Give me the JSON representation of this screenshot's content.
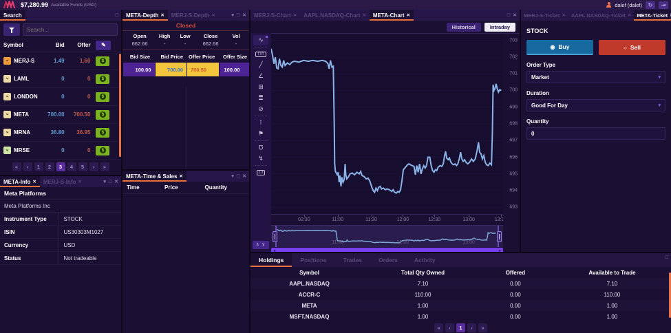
{
  "topbar": {
    "balance": "$7,280.99",
    "balance_label": "Available Funds (USD)",
    "user": "dalef (dalef)"
  },
  "icons": {
    "collapse": "▾",
    "maximize": "□",
    "close": "✕",
    "tab_close": "✕",
    "refresh": "↻",
    "logout": "⇥",
    "edit_pencil": "✎",
    "trade_dollar": "$",
    "dropdown_chevron": "▾",
    "radio_on": "◉",
    "radio_off": "○",
    "badge_chevron": "⌄",
    "chevrons_updown": "∧ ∨",
    "scroll_left_cap": "◂",
    "scroll_right_cap": "▸",
    "scroll_grip": "∙∙∙"
  },
  "watchlist": {
    "tab": "Search",
    "search_placeholder": "Search...",
    "columns": [
      "Symbol",
      "Bid",
      "Offer"
    ],
    "rows": [
      {
        "symbol": "MERJ-S",
        "bid": "1.49",
        "offer": "1.60",
        "badge_color": "#ef9b3a"
      },
      {
        "symbol": "LAML",
        "bid": "0",
        "offer": "0",
        "badge_color": "#ecd9a8"
      },
      {
        "symbol": "LONDON",
        "bid": "0",
        "offer": "0",
        "badge_color": "#ecd9a8"
      },
      {
        "symbol": "META",
        "bid": "700.00",
        "offer": "700.50",
        "badge_color": "#ecd9a8"
      },
      {
        "symbol": "MRNA",
        "bid": "36.80",
        "offer": "36.95",
        "badge_color": "#ecd9a8"
      },
      {
        "symbol": "MRSE",
        "bid": "0",
        "offer": "0",
        "badge_color": "#cfe3a6"
      }
    ],
    "pagination": [
      "«",
      "‹",
      "1",
      "2",
      "3",
      "4",
      "5",
      "›",
      "»"
    ],
    "active_page": "3"
  },
  "info_panel": {
    "tabs": [
      "META-Info",
      "MERJ-S-Info"
    ],
    "active_tab": "META-Info",
    "title": "Meta Platforms",
    "subtitle": "Meta Platforms Inc",
    "fields": [
      [
        "Instrument Type",
        "STOCK"
      ],
      [
        "ISIN",
        "US30303M1027"
      ],
      [
        "Currency",
        "USD"
      ],
      [
        "Status",
        "Not tradeable"
      ]
    ]
  },
  "depth_panel": {
    "tabs": [
      "META-Depth",
      "MERJ-S-Depth"
    ],
    "active_tab": "META-Depth",
    "status": "Closed",
    "stats": [
      [
        "Open",
        "662.66"
      ],
      [
        "High",
        "-"
      ],
      [
        "Low",
        "-"
      ],
      [
        "Close",
        "662.66"
      ],
      [
        "Vol",
        "-"
      ]
    ],
    "columns": [
      "Bid Size",
      "Bid Price",
      "Offer Price",
      "Offer Size"
    ],
    "row": [
      "100.00",
      "700.00",
      "700.50",
      "100.00"
    ]
  },
  "timesales_panel": {
    "tab": "META-Time & Sales",
    "columns": [
      "Time",
      "Price",
      "Quantity"
    ]
  },
  "chart_panel": {
    "tabs": [
      "MERJ-S-Chart",
      "AAPL.NASDAQ-Chart",
      "META-Chart"
    ],
    "active_tab": "META-Chart",
    "range_buttons": [
      "Historical",
      "Intraday"
    ],
    "active_range": "Intraday",
    "toolbar_icons": [
      {
        "name": "chart-type-icon",
        "glyph": "∿",
        "style": "first"
      },
      {
        "name": "divider"
      },
      {
        "name": "text-tool-icon",
        "glyph": "TXT",
        "style": "boxed"
      },
      {
        "name": "trendline-tool-icon",
        "glyph": "╱"
      },
      {
        "name": "angle-tool-icon",
        "glyph": "∠"
      },
      {
        "name": "grid-tool-icon",
        "glyph": "⊞"
      },
      {
        "name": "fib-levels-icon",
        "glyph": "≣"
      },
      {
        "name": "hide-drawings-icon",
        "glyph": "⊘"
      },
      {
        "name": "divider"
      },
      {
        "name": "price-label-icon",
        "glyph": "⊺"
      },
      {
        "name": "flag-marker-icon",
        "glyph": "⚑"
      },
      {
        "name": "divider"
      },
      {
        "name": "magnet-icon",
        "glyph": "Ω",
        "style": "flip"
      },
      {
        "name": "zigzag-icon",
        "glyph": "↯"
      },
      {
        "name": "divider"
      },
      {
        "name": "ohlc-tag-icon",
        "glyph": "1.3",
        "style": "boxed"
      }
    ]
  },
  "chart_data": {
    "type": "line",
    "title": "META-Chart Intraday",
    "ylabel": "",
    "xlabel": "",
    "ylim": [
      692.6,
      703.4
    ],
    "y_ticks": [
      703,
      702,
      701,
      700,
      699,
      698,
      697,
      696,
      695,
      694,
      693
    ],
    "x_ticks": [
      {
        "label": "02:30",
        "pos": 14.2
      },
      {
        "label": "11:00",
        "pos": 28.7
      },
      {
        "label": "11:30",
        "pos": 43.2
      },
      {
        "label": "12:00",
        "pos": 56.8
      },
      {
        "label": "12:30",
        "pos": 70.4
      },
      {
        "label": "13:00",
        "pos": 85.2
      },
      {
        "label": "13:30",
        "pos": 99.0
      }
    ],
    "navigator_labels": [
      {
        "label": "11:00",
        "pos": 28.7
      },
      {
        "label": "12:00",
        "pos": 56.8
      },
      {
        "label": "13:00",
        "pos": 85.2
      }
    ],
    "grid": "horizontal",
    "legend": "none",
    "series": [
      {
        "name": "META",
        "color": "#8ab4e8",
        "points": [
          [
            0,
            702.5
          ],
          [
            0.6,
            702.1
          ],
          [
            1.2,
            701.6
          ],
          [
            1.8,
            702.0
          ],
          [
            2.4,
            701.35
          ],
          [
            3,
            701.3
          ],
          [
            3.6,
            701.9
          ],
          [
            4.2,
            701.5
          ],
          [
            4.8,
            701.4
          ],
          [
            5.4,
            701.8
          ],
          [
            6,
            701.5
          ],
          [
            7,
            701.65
          ],
          [
            8,
            701.55
          ],
          [
            9,
            701.7
          ],
          [
            10,
            701.75
          ],
          [
            12,
            701.7
          ],
          [
            14,
            701.8
          ],
          [
            16,
            701.75
          ],
          [
            18,
            701.8
          ],
          [
            20,
            701.75
          ],
          [
            22,
            701.8
          ],
          [
            23.5,
            701.75
          ],
          [
            24.5,
            701.6
          ],
          [
            25,
            701.3
          ],
          [
            25.6,
            701.8
          ],
          [
            26.2,
            701.4
          ],
          [
            26.8,
            701.45
          ],
          [
            27.2,
            698.0
          ],
          [
            27.4,
            695.6
          ],
          [
            27.7,
            695.15
          ],
          [
            28.1,
            695.05
          ],
          [
            28.5,
            694.95
          ],
          [
            28.9,
            695.1
          ],
          [
            29.3,
            694.5
          ],
          [
            29.7,
            694.9
          ],
          [
            30.1,
            694.25
          ],
          [
            30.5,
            694.8
          ],
          [
            31,
            694.5
          ],
          [
            31.5,
            694.65
          ],
          [
            31.9,
            695.6
          ],
          [
            32.2,
            694.95
          ],
          [
            32.6,
            694.7
          ],
          [
            33.2,
            694.8
          ],
          [
            34,
            695.0
          ],
          [
            35,
            695.05
          ],
          [
            36,
            694.95
          ],
          [
            37,
            695.1
          ],
          [
            38,
            695.0
          ],
          [
            38.6,
            695.15
          ],
          [
            39.2,
            694.9
          ],
          [
            40,
            694.85
          ],
          [
            41,
            694.7
          ],
          [
            41.8,
            694.75
          ],
          [
            42.6,
            694.55
          ],
          [
            43.4,
            694.2
          ],
          [
            44,
            694.0
          ],
          [
            44.6,
            693.9
          ],
          [
            45.2,
            694.15
          ],
          [
            45.8,
            694.0
          ],
          [
            46.4,
            694.2
          ],
          [
            47,
            694.25
          ],
          [
            47.6,
            694.1
          ],
          [
            48.4,
            694.15
          ],
          [
            49.2,
            694.05
          ],
          [
            50,
            694.1
          ],
          [
            51,
            694.05
          ],
          [
            52,
            693.95
          ],
          [
            52.6,
            694.05
          ],
          [
            53.2,
            693.9
          ],
          [
            54,
            693.85
          ],
          [
            54.6,
            693.95
          ],
          [
            55.2,
            693.9
          ],
          [
            55.8,
            694.05
          ],
          [
            56.4,
            694.6
          ],
          [
            57,
            695.25
          ],
          [
            57.6,
            695.35
          ],
          [
            58.2,
            695.45
          ],
          [
            58.8,
            695.55
          ],
          [
            59.4,
            695.6
          ],
          [
            60,
            695.55
          ],
          [
            60.8,
            695.5
          ],
          [
            61.6,
            695.45
          ],
          [
            62.2,
            694.95
          ],
          [
            62.8,
            695.5
          ],
          [
            63.4,
            695.1
          ],
          [
            64,
            695.6
          ],
          [
            64.6,
            695.0
          ],
          [
            65.2,
            695.3
          ],
          [
            65.8,
            695.5
          ],
          [
            66.4,
            695.35
          ],
          [
            67,
            695.5
          ],
          [
            67.6,
            696.0
          ],
          [
            68.4,
            696.0
          ],
          [
            69,
            695.5
          ],
          [
            69.6,
            695.2
          ],
          [
            70.2,
            695.1
          ],
          [
            70.8,
            695.25
          ],
          [
            71.4,
            695.2
          ],
          [
            72,
            695.4
          ],
          [
            72.8,
            695.5
          ],
          [
            73.6,
            695.45
          ],
          [
            74.2,
            695.6
          ],
          [
            74.8,
            696.1
          ],
          [
            75.2,
            696.35
          ],
          [
            75.7,
            695.95
          ],
          [
            76.3,
            695.85
          ],
          [
            76.9,
            695.95
          ],
          [
            77.5,
            695.7
          ],
          [
            78.1,
            695.6
          ],
          [
            78.7,
            695.55
          ],
          [
            79.3,
            695.6
          ],
          [
            79.9,
            695.5
          ],
          [
            80.5,
            695.6
          ],
          [
            81.1,
            695.9
          ],
          [
            81.7,
            696.3
          ],
          [
            82.2,
            695.9
          ],
          [
            82.8,
            695.75
          ],
          [
            83.4,
            695.85
          ],
          [
            84,
            695.7
          ],
          [
            84.8,
            695.6
          ],
          [
            85.6,
            695.7
          ],
          [
            86.4,
            695.9
          ],
          [
            87.2,
            695.75
          ],
          [
            88,
            695.9
          ],
          [
            88.8,
            696.4
          ],
          [
            89.4,
            696.9
          ],
          [
            89.9,
            696.3
          ],
          [
            90.5,
            696.2
          ],
          [
            91.1,
            695.9
          ],
          [
            91.7,
            696.1
          ],
          [
            92.3,
            695.7
          ],
          [
            92.9,
            695.55
          ],
          [
            93.6,
            695.5
          ],
          [
            94.3,
            695.65
          ],
          [
            95,
            695.55
          ],
          [
            95.4,
            697.5
          ],
          [
            95.7,
            700.35
          ],
          [
            96.1,
            700.0
          ],
          [
            96.5,
            700.1
          ],
          [
            97,
            700.4
          ],
          [
            97.5,
            700.1
          ],
          [
            98,
            699.9
          ],
          [
            98.6,
            700.05
          ],
          [
            99.2,
            700.0
          ]
        ]
      }
    ]
  },
  "ticket_panel": {
    "tabs": [
      "MERJ-S-Ticket",
      "AAPL.NASDAQ-Ticket",
      "META-Ticket"
    ],
    "active_tab": "META-Ticket",
    "instrument_type": "STOCK",
    "buy_label": "Buy",
    "sell_label": "Sell",
    "selected_side": "Buy",
    "order_type_label": "Order Type",
    "order_type_value": "Market",
    "duration_label": "Duration",
    "duration_value": "Good For Day",
    "quantity_label": "Quantity",
    "quantity_value": "0"
  },
  "holdings_panel": {
    "tabs": [
      "Holdings",
      "Positions",
      "Trades",
      "Orders",
      "Activity"
    ],
    "active_tab": "Holdings",
    "columns": [
      "Symbol",
      "Total Qty Owned",
      "Offered",
      "Available to Trade"
    ],
    "rows": [
      [
        "AAPL.NASDAQ",
        "7.10",
        "0.00",
        "7.10"
      ],
      [
        "ACCR-C",
        "110.00",
        "0.00",
        "110.00"
      ],
      [
        "META",
        "1.00",
        "0.00",
        "1.00"
      ],
      [
        "MSFT.NASDAQ",
        "1.00",
        "0.00",
        "1.00"
      ]
    ],
    "pagination": [
      "«",
      "‹",
      "1",
      "›",
      "»"
    ],
    "active_page": "1"
  }
}
